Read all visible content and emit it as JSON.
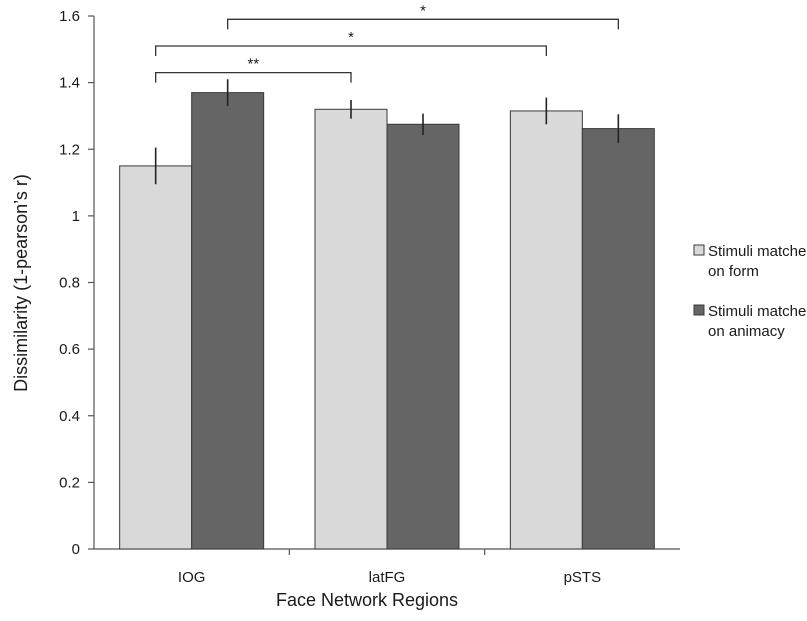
{
  "chart_data": {
    "type": "bar",
    "title": "",
    "xlabel": "Face Network Regions",
    "ylabel": "Dissimilarity (1-pearson’s r)",
    "ylim": [
      0,
      1.6
    ],
    "yticks": [
      "0",
      "0.2",
      "0.4",
      "0.6",
      "0.8",
      "1",
      "1.2",
      "1.4",
      "1.6"
    ],
    "grid": false,
    "legend_position": "right",
    "categories": [
      "IOG",
      "latFG",
      "pSTS"
    ],
    "series": [
      {
        "name": "Stimuli matched on form",
        "legend_lines": [
          "Stimuli matched",
          "on form"
        ],
        "color": "#d9d9d9",
        "values": [
          1.15,
          1.32,
          1.315
        ],
        "errors": [
          0.055,
          0.028,
          0.04
        ]
      },
      {
        "name": "Stimuli matched on animacy",
        "legend_lines": [
          "Stimuli matched",
          "on animacy"
        ],
        "color": "#656565",
        "values": [
          1.37,
          1.275,
          1.262
        ],
        "errors": [
          0.04,
          0.032,
          0.043
        ]
      }
    ],
    "significance": [
      {
        "label": "**",
        "from": [
          0,
          0
        ],
        "to": [
          1,
          0
        ],
        "level": 1.43
      },
      {
        "label": "*",
        "from": [
          0,
          0
        ],
        "to": [
          2,
          0
        ],
        "level": 1.51
      },
      {
        "label": "*",
        "from": [
          0,
          1
        ],
        "to": [
          2,
          1
        ],
        "level": 1.59
      }
    ]
  }
}
